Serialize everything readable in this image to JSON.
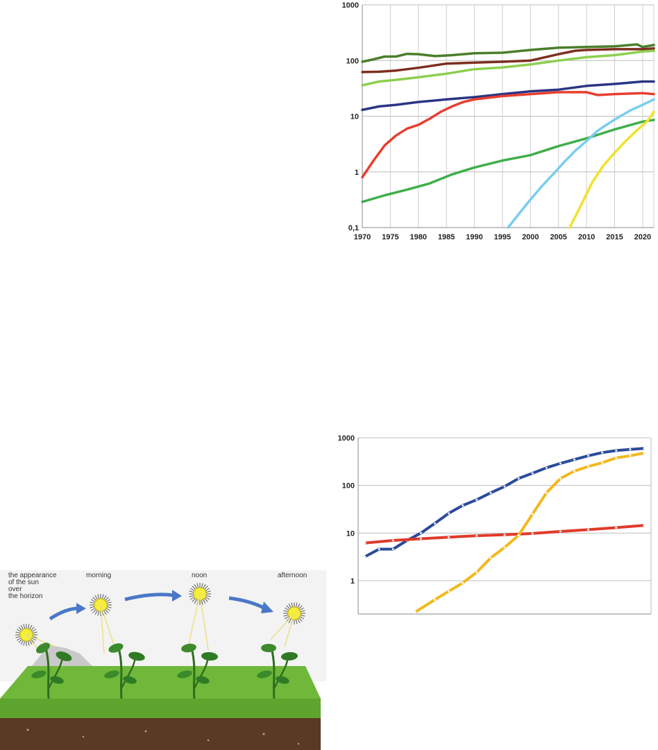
{
  "chart_data": [
    {
      "type": "line",
      "scale": "log",
      "xlim": [
        1970,
        2022
      ],
      "ylim": [
        0.1,
        1000
      ],
      "x_ticks": [
        "1970",
        "1975",
        "1980",
        "1985",
        "1990",
        "1995",
        "2000",
        "2005",
        "2010",
        "2015",
        "2020"
      ],
      "y_ticks": [
        "0,1",
        "1",
        "10",
        "100",
        "1000"
      ],
      "grid": true,
      "series": [
        {
          "color": "#4a7e2b",
          "points": [
            [
              1970,
              95
            ],
            [
              1972,
              105
            ],
            [
              1974,
              118
            ],
            [
              1976,
              118
            ],
            [
              1978,
              132
            ],
            [
              1980,
              130
            ],
            [
              1983,
              120
            ],
            [
              1986,
              125
            ],
            [
              1990,
              135
            ],
            [
              1995,
              138
            ],
            [
              2000,
              155
            ],
            [
              2005,
              170
            ],
            [
              2010,
              175
            ],
            [
              2015,
              180
            ],
            [
              2019,
              195
            ],
            [
              2020,
              175
            ],
            [
              2022,
              190
            ]
          ]
        },
        {
          "color": "#7e2e1e",
          "points": [
            [
              1970,
              62
            ],
            [
              1973,
              63
            ],
            [
              1976,
              66
            ],
            [
              1980,
              74
            ],
            [
              1985,
              88
            ],
            [
              1990,
              92
            ],
            [
              1995,
              95
            ],
            [
              2000,
              100
            ],
            [
              2005,
              130
            ],
            [
              2008,
              150
            ],
            [
              2010,
              155
            ],
            [
              2015,
              160
            ],
            [
              2020,
              160
            ],
            [
              2022,
              165
            ]
          ]
        },
        {
          "color": "#8ccf4e",
          "points": [
            [
              1970,
              36
            ],
            [
              1973,
              42
            ],
            [
              1976,
              45
            ],
            [
              1980,
              50
            ],
            [
              1985,
              58
            ],
            [
              1990,
              70
            ],
            [
              1995,
              75
            ],
            [
              2000,
              85
            ],
            [
              2005,
              100
            ],
            [
              2010,
              115
            ],
            [
              2015,
              125
            ],
            [
              2020,
              145
            ],
            [
              2022,
              150
            ]
          ]
        },
        {
          "color": "#2a3585",
          "points": [
            [
              1970,
              13
            ],
            [
              1973,
              15
            ],
            [
              1976,
              16
            ],
            [
              1980,
              18
            ],
            [
              1985,
              20
            ],
            [
              1990,
              22
            ],
            [
              1995,
              25
            ],
            [
              2000,
              28
            ],
            [
              2005,
              30
            ],
            [
              2010,
              35
            ],
            [
              2015,
              38
            ],
            [
              2020,
              42
            ],
            [
              2022,
              42
            ]
          ]
        },
        {
          "color": "#e83e2f",
          "points": [
            [
              1970,
              0.8
            ],
            [
              1972,
              1.6
            ],
            [
              1974,
              3
            ],
            [
              1976,
              4.5
            ],
            [
              1978,
              6
            ],
            [
              1980,
              7
            ],
            [
              1982,
              9
            ],
            [
              1984,
              12
            ],
            [
              1986,
              15
            ],
            [
              1988,
              18
            ],
            [
              1990,
              20
            ],
            [
              1995,
              23
            ],
            [
              2000,
              25
            ],
            [
              2005,
              27
            ],
            [
              2010,
              27
            ],
            [
              2012,
              24
            ],
            [
              2015,
              25
            ],
            [
              2020,
              26
            ],
            [
              2022,
              25
            ]
          ]
        },
        {
          "color": "#3fae49",
          "points": [
            [
              1970,
              0.29
            ],
            [
              1974,
              0.38
            ],
            [
              1978,
              0.48
            ],
            [
              1982,
              0.62
            ],
            [
              1986,
              0.9
            ],
            [
              1990,
              1.2
            ],
            [
              1995,
              1.6
            ],
            [
              2000,
              2.0
            ],
            [
              2005,
              2.9
            ],
            [
              2010,
              4.0
            ],
            [
              2015,
              5.8
            ],
            [
              2020,
              8
            ],
            [
              2022,
              8.6
            ]
          ]
        },
        {
          "color": "#79cdf0",
          "points": [
            [
              1996,
              0.1
            ],
            [
              1998,
              0.18
            ],
            [
              2000,
              0.32
            ],
            [
              2002,
              0.55
            ],
            [
              2004,
              0.9
            ],
            [
              2006,
              1.5
            ],
            [
              2008,
              2.4
            ],
            [
              2010,
              3.6
            ],
            [
              2012,
              5.5
            ],
            [
              2014,
              7.5
            ],
            [
              2016,
              10
            ],
            [
              2018,
              13
            ],
            [
              2020,
              16
            ],
            [
              2022,
              20
            ]
          ]
        },
        {
          "color": "#f2e12b",
          "points": [
            [
              2007,
              0.1
            ],
            [
              2009,
              0.25
            ],
            [
              2011,
              0.65
            ],
            [
              2013,
              1.3
            ],
            [
              2015,
              2.2
            ],
            [
              2017,
              3.6
            ],
            [
              2019,
              5.6
            ],
            [
              2021,
              8.5
            ],
            [
              2022,
              12
            ]
          ]
        }
      ]
    },
    {
      "type": "line",
      "scale": "log",
      "ylim": [
        0.2,
        1000
      ],
      "y_ticks": [
        "1",
        "10",
        "100",
        "1000"
      ],
      "grid": true,
      "series": [
        {
          "color": "#2a4a9a",
          "x": [
            0,
            0.05,
            0.1,
            0.15,
            0.2,
            0.25,
            0.3,
            0.35,
            0.4,
            0.45,
            0.5,
            0.55,
            0.6,
            0.65,
            0.7,
            0.75,
            0.8,
            0.85,
            0.9,
            0.95,
            1
          ],
          "values": [
            3.2,
            4.6,
            4.6,
            7,
            10,
            16,
            26,
            38,
            50,
            70,
            95,
            140,
            180,
            235,
            290,
            350,
            420,
            490,
            540,
            570,
            600
          ]
        },
        {
          "color": "#e03a2a",
          "x": [
            0,
            0.1,
            0.2,
            0.3,
            0.4,
            0.5,
            0.6,
            0.7,
            0.8,
            0.9,
            1
          ],
          "values": [
            6.2,
            7,
            7.6,
            8.2,
            8.8,
            9.2,
            9.8,
            10.8,
            11.8,
            13,
            14.5
          ]
        },
        {
          "color": "#f2b81e",
          "x": [
            0.18,
            0.25,
            0.3,
            0.35,
            0.4,
            0.45,
            0.5,
            0.55,
            0.6,
            0.65,
            0.7,
            0.75,
            0.8,
            0.85,
            0.9,
            0.95,
            1
          ],
          "values": [
            0.22,
            0.4,
            0.6,
            0.9,
            1.5,
            3,
            5,
            9,
            25,
            70,
            140,
            200,
            250,
            300,
            380,
            420,
            480
          ]
        }
      ]
    }
  ],
  "illustration": {
    "stages": [
      {
        "label_lines": [
          "the appearance",
          "of the sun",
          "over",
          "the horizon"
        ]
      },
      {
        "label_lines": [
          "morning"
        ]
      },
      {
        "label_lines": [
          "noon"
        ]
      },
      {
        "label_lines": [
          "afternoon"
        ]
      }
    ],
    "colors": {
      "sky": "#f2f2f2",
      "grass": "#6fb83a",
      "soil": "#5a3a22",
      "arrow": "#4a78c8",
      "sun": "#f5ee3a"
    }
  }
}
